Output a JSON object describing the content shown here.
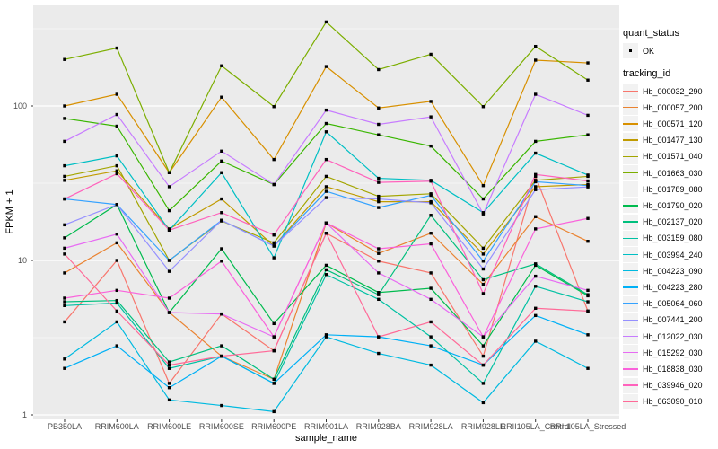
{
  "plot": {
    "y_axis_title": "FPKM + 1",
    "x_axis_title": "sample_name",
    "y_tick_labels": [
      "100",
      "10",
      "1"
    ],
    "panel_bg": "#EBEBEB",
    "grid_color": "#FFFFFF",
    "tick_color": "#333333"
  },
  "legend": {
    "quant_status": {
      "title": "quant_status",
      "items": [
        {
          "label": "OK",
          "marker": "black-point"
        }
      ]
    },
    "tracking_id": {
      "title": "tracking_id"
    }
  },
  "chart_data": {
    "type": "line",
    "title": "",
    "xlabel": "sample_name",
    "ylabel": "FPKM + 1",
    "y_scale": "log10",
    "y_major_ticks": [
      1,
      10,
      100
    ],
    "y_minor_gridlines": [
      3.162,
      31.62,
      316.2
    ],
    "ylim": [
      1,
      450
    ],
    "grid": true,
    "legend_position": "right",
    "point_label": "OK",
    "categories": [
      "PB350LA",
      "RRIM600LA",
      "RRIM600LE",
      "RRIM600SE",
      "RRIM600PE",
      "RRIM901LA",
      "RRIM928BA",
      "RRIM928LA",
      "RRIM928LE",
      "RRII105LA_Control",
      "RRII105LA_Stressed"
    ],
    "series": [
      {
        "name": "Hb_000032_290",
        "color": "#F8766D",
        "values": [
          4.0,
          10.0,
          1.6,
          4.5,
          2.6,
          15.0,
          9.9,
          8.3,
          2.4,
          35.0,
          4.7
        ]
      },
      {
        "name": "Hb_000057_200",
        "color": "#EA8331",
        "values": [
          8.3,
          13.0,
          4.6,
          2.4,
          1.7,
          17.5,
          11.1,
          15.0,
          7.0,
          19.2,
          13.3
        ]
      },
      {
        "name": "Hb_000571_120",
        "color": "#D89000",
        "values": [
          100,
          119,
          37,
          114,
          45,
          180,
          97,
          107,
          30.5,
          198,
          190
        ]
      },
      {
        "name": "Hb_001477_130",
        "color": "#C09B00",
        "values": [
          33,
          38,
          16,
          25,
          12.4,
          30,
          24,
          24,
          11,
          30,
          31
        ]
      },
      {
        "name": "Hb_001571_040",
        "color": "#A3A500",
        "values": [
          35,
          41,
          10,
          18,
          13,
          35,
          26,
          27,
          12,
          33,
          35
        ]
      },
      {
        "name": "Hb_001663_030",
        "color": "#7CAE00",
        "values": [
          200,
          237,
          37,
          182,
          99,
          350,
          172,
          216,
          99,
          243,
          147
        ]
      },
      {
        "name": "Hb_001789_080",
        "color": "#39B600",
        "values": [
          83,
          74,
          21,
          44,
          31,
          77,
          65,
          55,
          25,
          59,
          65
        ]
      },
      {
        "name": "Hb_001790_020",
        "color": "#00BB4E",
        "values": [
          14,
          23,
          4.6,
          11.9,
          3.9,
          9.3,
          6.2,
          6.6,
          2.8,
          9.3,
          5.9
        ]
      },
      {
        "name": "Hb_002137_020",
        "color": "#00BF7D",
        "values": [
          5.4,
          5.5,
          2.2,
          2.8,
          1.7,
          8.7,
          6.0,
          19.6,
          7.5,
          9.5,
          6.0
        ]
      },
      {
        "name": "Hb_003159_080",
        "color": "#00C1A3",
        "values": [
          5.1,
          5.3,
          2.0,
          2.4,
          1.6,
          8.1,
          5.6,
          3.2,
          1.6,
          6.8,
          5.4
        ]
      },
      {
        "name": "Hb_003994_240",
        "color": "#00BFC4",
        "values": [
          41,
          47.5,
          15.7,
          37,
          10.4,
          68,
          34,
          33,
          20.4,
          49.5,
          35.7
        ]
      },
      {
        "name": "Hb_004223_090",
        "color": "#00BAE0",
        "values": [
          2.3,
          4.0,
          1.25,
          1.15,
          1.05,
          3.2,
          2.5,
          2.1,
          1.2,
          3.0,
          2.0
        ]
      },
      {
        "name": "Hb_004223_280",
        "color": "#00B0F6",
        "values": [
          2.0,
          2.8,
          1.5,
          2.4,
          1.6,
          3.3,
          3.2,
          2.8,
          2.1,
          4.4,
          3.3
        ]
      },
      {
        "name": "Hb_005064_060",
        "color": "#35A2FF",
        "values": [
          25,
          23,
          10,
          18.2,
          12.4,
          28,
          22,
          26.4,
          9.9,
          32.3,
          30.5
        ]
      },
      {
        "name": "Hb_007441_200",
        "color": "#9590FF",
        "values": [
          17,
          23,
          8.5,
          18.2,
          12.4,
          25.5,
          25,
          23.6,
          8.8,
          28.7,
          29.9
        ]
      },
      {
        "name": "Hb_012022_030",
        "color": "#C77CFF",
        "values": [
          59,
          88,
          30,
          51,
          31,
          94,
          76,
          85,
          20,
          119,
          87
        ]
      },
      {
        "name": "Hb_015292_030",
        "color": "#E76BF3",
        "values": [
          12,
          14.8,
          4.6,
          4.5,
          3.2,
          17.5,
          8.3,
          5.6,
          3.2,
          7.9,
          6.4
        ]
      },
      {
        "name": "Hb_018838_030",
        "color": "#FA62DB",
        "values": [
          5.7,
          6.4,
          5.7,
          9.9,
          3.2,
          17.5,
          11.9,
          12.8,
          3.2,
          16,
          18.7
        ]
      },
      {
        "name": "Hb_039946_020",
        "color": "#FF62BC",
        "values": [
          25,
          36.4,
          15.7,
          20.4,
          14.6,
          45,
          32,
          32.6,
          6.1,
          36,
          32.7
        ]
      },
      {
        "name": "Hb_063090_010",
        "color": "#FF6A98",
        "values": [
          11,
          4.7,
          2.1,
          2.4,
          2.6,
          15,
          3.2,
          4.0,
          2.1,
          4.9,
          4.7
        ]
      }
    ]
  }
}
